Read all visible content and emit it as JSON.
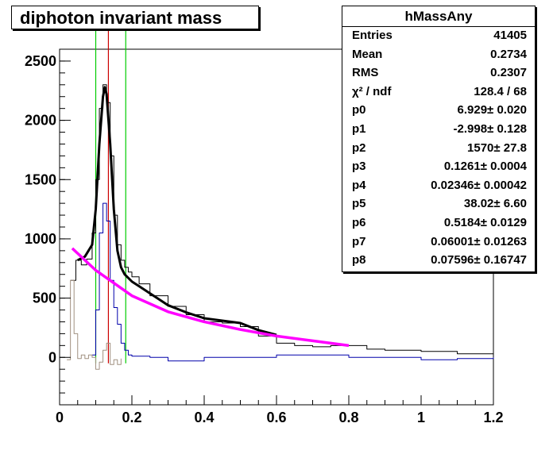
{
  "title": "diphoton invariant mass",
  "stats": {
    "name": "hMassAny",
    "rows": [
      {
        "key": "Entries",
        "value": "41405"
      },
      {
        "key": "Mean",
        "value": "0.2734"
      },
      {
        "key": "RMS",
        "value": "0.2307"
      },
      {
        "key": "χ² / ndf",
        "value": "128.4 / 68"
      },
      {
        "key": "p0",
        "value": "6.929± 0.020"
      },
      {
        "key": "p1",
        "value": "-2.998± 0.128"
      },
      {
        "key": "p2",
        "value": "1570± 27.8"
      },
      {
        "key": "p3",
        "value": "0.1261± 0.0004"
      },
      {
        "key": "p4",
        "value": "0.02346± 0.00042"
      },
      {
        "key": "p5",
        "value": "38.02± 6.60"
      },
      {
        "key": "p6",
        "value": "0.5184± 0.0129"
      },
      {
        "key": "p7",
        "value": "0.06001± 0.01263"
      },
      {
        "key": "p8",
        "value": "0.07596± 0.16747"
      }
    ]
  },
  "chart_data": {
    "type": "line",
    "xlim": [
      0,
      1.2
    ],
    "ylim": [
      -400,
      2600
    ],
    "xticks": [
      "0",
      "0.2",
      "0.4",
      "0.6",
      "0.8",
      "1",
      "1.2"
    ],
    "xtick_values": [
      0,
      0.2,
      0.4,
      0.6,
      0.8,
      1.0,
      1.2
    ],
    "yticks": [
      "0",
      "500",
      "1000",
      "1500",
      "2000",
      "2500"
    ],
    "ytick_values": [
      0,
      500,
      1000,
      1500,
      2000,
      2500
    ],
    "vertical_lines": [
      {
        "x": 0.1,
        "color": "#00cc00"
      },
      {
        "x": 0.135,
        "color": "#cc0000"
      },
      {
        "x": 0.183,
        "color": "#00cc00"
      }
    ],
    "series": [
      {
        "color": "#000000",
        "style": "step",
        "x": [
          0.03,
          0.045,
          0.06,
          0.075,
          0.09,
          0.1,
          0.11,
          0.12,
          0.13,
          0.14,
          0.15,
          0.16,
          0.17,
          0.18,
          0.19,
          0.2,
          0.22,
          0.25,
          0.3,
          0.35,
          0.4,
          0.45,
          0.5,
          0.55,
          0.6,
          0.65,
          0.7,
          0.75,
          0.8,
          0.85,
          0.9,
          1.0,
          1.1,
          1.2
        ],
        "values": [
          650,
          820,
          780,
          830,
          1050,
          1500,
          2100,
          2300,
          2150,
          1700,
          1200,
          950,
          820,
          760,
          720,
          680,
          620,
          520,
          430,
          360,
          300,
          290,
          260,
          180,
          120,
          100,
          90,
          100,
          100,
          70,
          60,
          50,
          30,
          10
        ]
      },
      {
        "color": "#000000",
        "style": "fit",
        "x": [
          0.05,
          0.07,
          0.09,
          0.1,
          0.11,
          0.12,
          0.125,
          0.13,
          0.14,
          0.15,
          0.16,
          0.17,
          0.18,
          0.2,
          0.22,
          0.25,
          0.3,
          0.35,
          0.4,
          0.45,
          0.5,
          0.55,
          0.6
        ],
        "values": [
          820,
          850,
          950,
          1250,
          1800,
          2200,
          2280,
          2220,
          1800,
          1250,
          900,
          760,
          700,
          640,
          600,
          540,
          440,
          380,
          330,
          310,
          290,
          230,
          190
        ]
      },
      {
        "color": "#0000aa",
        "style": "step",
        "x": [
          0.09,
          0.1,
          0.11,
          0.12,
          0.13,
          0.14,
          0.15,
          0.16,
          0.17,
          0.18,
          0.19,
          0.2,
          0.25,
          0.3,
          0.4,
          0.5,
          0.6,
          0.7,
          0.8,
          0.9,
          1.0,
          1.1,
          1.2
        ],
        "values": [
          20,
          400,
          1050,
          1300,
          1150,
          650,
          420,
          280,
          120,
          60,
          20,
          10,
          0,
          -30,
          0,
          0,
          20,
          20,
          0,
          0,
          -20,
          -10,
          0
        ]
      },
      {
        "color": "#a09080",
        "style": "step",
        "x": [
          0.02,
          0.03,
          0.04,
          0.05,
          0.06,
          0.07,
          0.08,
          0.09,
          0.1,
          0.11,
          0.12,
          0.13,
          0.14,
          0.15,
          0.16,
          0.17
        ],
        "values": [
          -20,
          650,
          200,
          -10,
          20,
          -10,
          20,
          0,
          -100,
          -40,
          60,
          120,
          -60,
          -20,
          -60,
          -10
        ]
      },
      {
        "color": "#ff00ff",
        "style": "fit",
        "x": [
          0.035,
          0.1,
          0.2,
          0.3,
          0.4,
          0.5,
          0.6,
          0.7,
          0.8
        ],
        "values": [
          920,
          735,
          520,
          385,
          300,
          235,
          180,
          140,
          100
        ]
      }
    ]
  }
}
